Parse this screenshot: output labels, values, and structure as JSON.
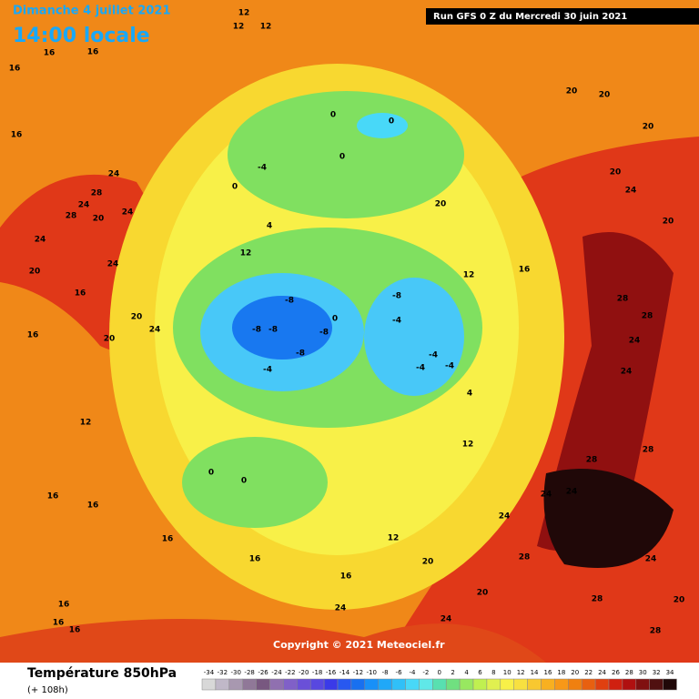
{
  "header": {
    "date": "Dimanche 4 juillet 2021",
    "time": "14:00 locale",
    "run": "Run GFS 0 Z du Mercredi 30 juin 2021"
  },
  "copyright": "Copyright © 2021 Meteociel.fr",
  "legend": {
    "title": "Température 850hPa",
    "lead": "(+ 108h)",
    "ticks": [
      -34,
      -32,
      -30,
      -28,
      -26,
      -24,
      -22,
      -20,
      -18,
      -16,
      -14,
      -12,
      -10,
      -8,
      -6,
      -4,
      -2,
      0,
      2,
      4,
      6,
      8,
      10,
      12,
      14,
      16,
      18,
      20,
      22,
      24,
      26,
      28,
      30,
      32,
      34
    ],
    "colors": [
      "#d8d8d8",
      "#c0b8c8",
      "#a898b0",
      "#907898",
      "#785880",
      "#9070b0",
      "#8060c8",
      "#6a50d8",
      "#5848e0",
      "#3a3ae8",
      "#2858f0",
      "#1870f0",
      "#1890f8",
      "#20a8f8",
      "#30c0f8",
      "#48d8f8",
      "#60e8e8",
      "#58e0b0",
      "#70e080",
      "#98e860",
      "#c0f050",
      "#e0f050",
      "#f8f048",
      "#f8e040",
      "#f8c830",
      "#f8b020",
      "#f89818",
      "#f08010",
      "#e86010",
      "#e04010",
      "#d02010",
      "#b01010",
      "#801010",
      "#501010",
      "#200808"
    ]
  },
  "isotherm_labels": [
    12,
    12,
    12,
    16,
    16,
    16,
    16,
    24,
    28,
    24,
    24,
    20,
    28,
    24,
    20,
    24,
    16,
    20,
    24,
    20,
    16,
    12,
    0,
    -4,
    0,
    0,
    0,
    4,
    12,
    -8,
    -8,
    -8,
    -8,
    -8,
    -4,
    0,
    -8,
    -4,
    -4,
    -4,
    -4,
    4,
    20,
    12,
    16,
    20,
    20,
    20,
    20,
    20,
    24,
    28,
    28,
    24,
    24,
    28,
    28,
    24,
    24,
    24,
    20,
    28,
    28,
    24,
    24,
    16,
    16,
    0,
    0,
    16,
    16,
    16,
    16,
    16,
    16,
    20,
    28,
    12,
    20,
    12,
    24
  ]
}
